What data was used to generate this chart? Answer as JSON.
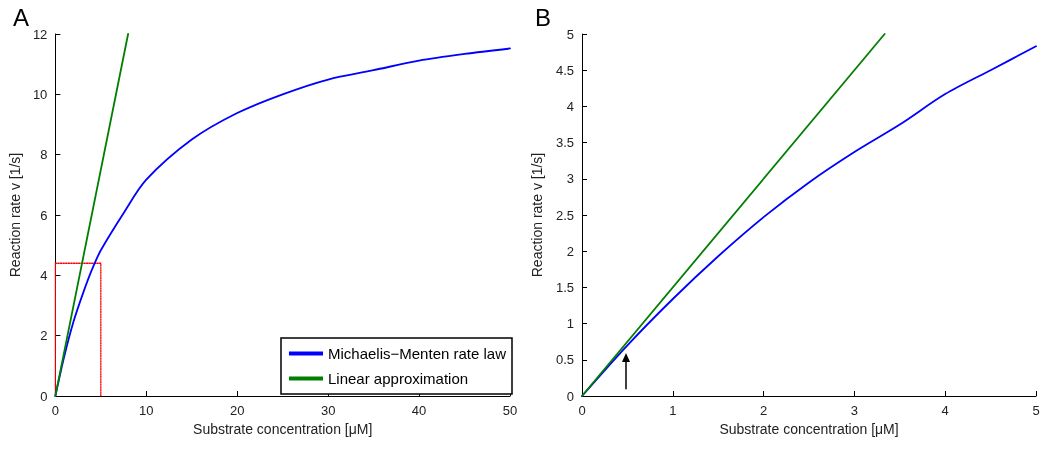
{
  "chart_data": [
    {
      "type": "line",
      "title": "A",
      "xlabel": "Substrate concentration [μM]",
      "ylabel": "Reaction rate v [1/s]",
      "xlim": [
        0,
        50
      ],
      "xticks": [
        0,
        10,
        20,
        30,
        40,
        50
      ],
      "ylim": [
        0,
        12
      ],
      "yticks": [
        0,
        2,
        4,
        6,
        8,
        10,
        12
      ],
      "marker": "none",
      "legend": "bottom right",
      "series": [
        {
          "name": "Michaelis−Menten rate law",
          "color": "#0000ff",
          "x": [
            0,
            1,
            2,
            3,
            4,
            5,
            7.5,
            10,
            15,
            20,
            25,
            30,
            35,
            40,
            45,
            50
          ],
          "values": [
            0,
            1.34,
            2.47,
            3.37,
            4.17,
            4.83,
            6.06,
            7.17,
            8.5,
            9.38,
            10.0,
            10.49,
            10.8,
            11.12,
            11.34,
            11.52
          ]
        },
        {
          "name": "Linear approximation",
          "color": "#007f00",
          "x": [
            0,
            8
          ],
          "values": [
            0,
            12
          ]
        },
        {
          "color": "#ff0000",
          "line_style": "dotted",
          "x": [
            0,
            0,
            5,
            5
          ],
          "values": [
            0,
            4.4,
            4.4,
            0
          ]
        }
      ]
    },
    {
      "type": "line",
      "title": "B",
      "xlabel": "Substrate concentration [μM]",
      "ylabel": "Reaction rate v [1/s]",
      "xlim": [
        0,
        5
      ],
      "xticks": [
        0,
        1,
        2,
        3,
        4,
        5
      ],
      "ylim": [
        0,
        5
      ],
      "yticks": [
        0,
        0.5,
        1,
        1.5,
        2,
        2.5,
        3,
        3.5,
        4,
        4.5,
        5
      ],
      "marker": "none",
      "series": [
        {
          "color": "#0000ff",
          "x": [
            0,
            0.5,
            1,
            1.5,
            2,
            2.5,
            3,
            3.5,
            4,
            4.5,
            5
          ],
          "values": [
            0,
            0.7,
            1.34,
            1.93,
            2.47,
            2.95,
            3.37,
            3.75,
            4.17,
            4.5,
            4.83
          ]
        },
        {
          "color": "#007f00",
          "x": [
            0,
            3.333
          ],
          "values": [
            0,
            5
          ]
        }
      ]
    }
  ]
}
